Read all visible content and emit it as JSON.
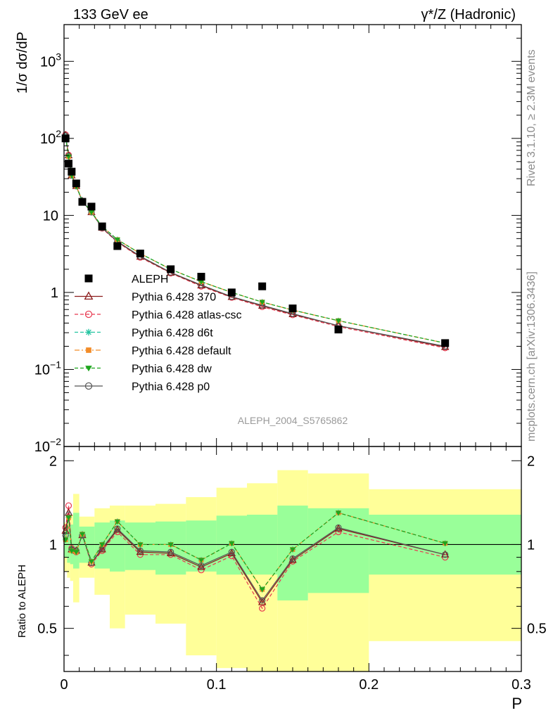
{
  "header": {
    "left": "133 GeV ee",
    "right": "γ*/Z (Hadronic)"
  },
  "side": {
    "rivet": "Rivet 3.1.10, ≥ 2.3M events",
    "mcplots": "mcplots.cern.ch [arXiv:1306.3436]"
  },
  "watermark": "ALEPH_2004_S5765862",
  "chart_data": [
    {
      "type": "scatter",
      "name": "main",
      "ylabel": "1/σ  dσ/dP",
      "xlim": [
        0,
        0.3
      ],
      "ylim": [
        0.01,
        3000
      ],
      "yscale": "log",
      "yticks": [
        {
          "v": 0.01,
          "label": "10",
          "sup": "−2"
        },
        {
          "v": 0.1,
          "label": "10",
          "sup": "−1"
        },
        {
          "v": 1,
          "label": "1",
          "sup": ""
        },
        {
          "v": 10,
          "label": "10",
          "sup": ""
        },
        {
          "v": 100,
          "label": "10",
          "sup": "2"
        },
        {
          "v": 1000,
          "label": "10",
          "sup": "3"
        }
      ],
      "x": [
        0.001,
        0.003,
        0.005,
        0.008,
        0.012,
        0.018,
        0.025,
        0.035,
        0.05,
        0.07,
        0.09,
        0.11,
        0.13,
        0.15,
        0.18,
        0.25
      ],
      "legend": [
        {
          "name": "ALEPH",
          "color": "#000000",
          "marker": "square",
          "dash": "none"
        },
        {
          "name": "Pythia 6.428 370",
          "color": "#8b1a1a",
          "marker": "triangle-open",
          "dash": "solid"
        },
        {
          "name": "Pythia 6.428 atlas-csc",
          "color": "#e8384f",
          "marker": "circle-open",
          "dash": "dashed"
        },
        {
          "name": "Pythia 6.428 d6t",
          "color": "#22c3a0",
          "marker": "star",
          "dash": "dashed"
        },
        {
          "name": "Pythia 6.428 default",
          "color": "#f28c28",
          "marker": "square-filled",
          "dash": "dashdot"
        },
        {
          "name": "Pythia 6.428 dw",
          "color": "#1ea51e",
          "marker": "triangle-down",
          "dash": "dashed"
        },
        {
          "name": "Pythia 6.428 p0",
          "color": "#555555",
          "marker": "circle-open",
          "dash": "solid"
        }
      ],
      "data": {
        "ALEPH": [
          100,
          47,
          37,
          26,
          15,
          13,
          7.2,
          4.0,
          3.2,
          2.0,
          1.6,
          1.0,
          1.2,
          0.62,
          0.33,
          0.22
        ],
        "Pythia 6.428 370": [
          110,
          60,
          33,
          24,
          15.3,
          11.0,
          6.9,
          4.55,
          2.9,
          1.8,
          1.23,
          0.87,
          0.67,
          0.52,
          0.37,
          0.195
        ],
        "Pythia 6.428 atlas-csc": [
          112,
          61,
          34,
          24,
          15.3,
          11.0,
          6.8,
          4.5,
          2.85,
          1.78,
          1.2,
          0.86,
          0.65,
          0.51,
          0.36,
          0.19
        ],
        "Pythia 6.428 d6t": [
          105,
          58,
          33,
          24,
          15.6,
          11.0,
          7.2,
          4.85,
          3.2,
          2.0,
          1.38,
          1.0,
          0.75,
          0.59,
          0.43,
          0.22
        ],
        "Pythia 6.428 default": [
          104,
          58,
          33,
          24,
          15.6,
          11.0,
          7.2,
          4.85,
          3.2,
          2.0,
          1.38,
          1.0,
          0.75,
          0.59,
          0.43,
          0.22
        ],
        "Pythia 6.428 dw": [
          104,
          58,
          33,
          24,
          15.6,
          11.0,
          7.2,
          4.85,
          3.2,
          2.0,
          1.38,
          1.0,
          0.75,
          0.59,
          0.43,
          0.22
        ],
        "Pythia 6.428 p0": [
          108,
          59,
          33,
          24,
          15.3,
          11.0,
          6.9,
          4.6,
          2.95,
          1.82,
          1.25,
          0.88,
          0.68,
          0.53,
          0.37,
          0.2
        ]
      }
    },
    {
      "type": "line",
      "name": "ratio",
      "ylabel": "Ratio to ALEPH",
      "xlabel": "P",
      "xlim": [
        0,
        0.3
      ],
      "ylim": [
        0.35,
        2.25
      ],
      "yscale": "log",
      "yticks": [
        0.5,
        1,
        2
      ],
      "xticks": [
        0,
        0.1,
        0.2,
        0.3
      ],
      "xtick_labels": [
        "0",
        "0.1",
        "0.2",
        "0.3"
      ],
      "bins": [
        {
          "lo": 0.0,
          "hi": 0.002,
          "inner": [
            0.9,
            1.1
          ],
          "outer": [
            0.8,
            1.2
          ]
        },
        {
          "lo": 0.002,
          "hi": 0.004,
          "inner": [
            0.86,
            1.16
          ],
          "outer": [
            0.76,
            1.26
          ]
        },
        {
          "lo": 0.004,
          "hi": 0.006,
          "inner": [
            0.85,
            1.18
          ],
          "outer": [
            0.74,
            1.28
          ]
        },
        {
          "lo": 0.006,
          "hi": 0.01,
          "inner": [
            0.82,
            1.3
          ],
          "outer": [
            0.62,
            1.52
          ]
        },
        {
          "lo": 0.01,
          "hi": 0.015,
          "inner": [
            0.86,
            1.16
          ],
          "outer": [
            0.76,
            1.26
          ]
        },
        {
          "lo": 0.015,
          "hi": 0.02,
          "inner": [
            0.86,
            1.16
          ],
          "outer": [
            0.76,
            1.26
          ]
        },
        {
          "lo": 0.02,
          "hi": 0.03,
          "inner": [
            0.82,
            1.2
          ],
          "outer": [
            0.66,
            1.35
          ]
        },
        {
          "lo": 0.03,
          "hi": 0.04,
          "inner": [
            0.8,
            1.22
          ],
          "outer": [
            0.5,
            1.38
          ]
        },
        {
          "lo": 0.04,
          "hi": 0.06,
          "inner": [
            0.81,
            1.2
          ],
          "outer": [
            0.56,
            1.38
          ]
        },
        {
          "lo": 0.06,
          "hi": 0.08,
          "inner": [
            0.78,
            1.21
          ],
          "outer": [
            0.52,
            1.4
          ]
        },
        {
          "lo": 0.08,
          "hi": 0.1,
          "inner": [
            0.8,
            1.22
          ],
          "outer": [
            0.4,
            1.48
          ]
        },
        {
          "lo": 0.1,
          "hi": 0.12,
          "inner": [
            0.78,
            1.27
          ],
          "outer": [
            0.36,
            1.6
          ]
        },
        {
          "lo": 0.12,
          "hi": 0.14,
          "inner": [
            0.78,
            1.28
          ],
          "outer": [
            0.35,
            1.66
          ]
        },
        {
          "lo": 0.14,
          "hi": 0.16,
          "inner": [
            0.63,
            1.38
          ],
          "outer": [
            0.35,
            1.85
          ]
        },
        {
          "lo": 0.16,
          "hi": 0.2,
          "inner": [
            0.67,
            1.35
          ],
          "outer": [
            0.35,
            1.8
          ]
        },
        {
          "lo": 0.2,
          "hi": 0.3,
          "inner": [
            0.78,
            1.28
          ],
          "outer": [
            0.45,
            1.58
          ]
        }
      ],
      "x": [
        0.001,
        0.003,
        0.005,
        0.008,
        0.012,
        0.018,
        0.025,
        0.035,
        0.05,
        0.07,
        0.09,
        0.11,
        0.13,
        0.15,
        0.18,
        0.25
      ],
      "series": [
        {
          "name": "Pythia 6.428 370",
          "values": [
            1.12,
            1.3,
            0.96,
            0.95,
            1.08,
            0.86,
            0.96,
            1.13,
            0.94,
            0.93,
            0.83,
            0.93,
            0.62,
            0.88,
            1.14,
            0.92
          ]
        },
        {
          "name": "Pythia 6.428 atlas-csc",
          "values": [
            1.15,
            1.38,
            0.97,
            0.94,
            1.08,
            0.85,
            0.95,
            1.11,
            0.92,
            0.92,
            0.81,
            0.91,
            0.59,
            0.87,
            1.11,
            0.9
          ]
        },
        {
          "name": "Pythia 6.428 d6t",
          "values": [
            1.04,
            1.25,
            0.95,
            0.94,
            1.09,
            0.87,
            1.0,
            1.21,
            1.0,
            1.0,
            0.88,
            1.01,
            0.69,
            0.96,
            1.3,
            1.01
          ]
        },
        {
          "name": "Pythia 6.428 default",
          "values": [
            1.04,
            1.25,
            0.95,
            0.94,
            1.09,
            0.87,
            1.0,
            1.21,
            1.0,
            1.0,
            0.88,
            1.01,
            0.69,
            0.96,
            1.3,
            1.01
          ]
        },
        {
          "name": "Pythia 6.428 dw",
          "values": [
            1.04,
            1.25,
            0.95,
            0.94,
            1.09,
            0.87,
            1.0,
            1.21,
            1.0,
            1.0,
            0.88,
            1.01,
            0.69,
            0.96,
            1.3,
            1.01
          ]
        },
        {
          "name": "Pythia 6.428 p0",
          "values": [
            1.08,
            1.28,
            0.96,
            0.95,
            1.08,
            0.86,
            0.97,
            1.14,
            0.95,
            0.94,
            0.84,
            0.94,
            0.63,
            0.89,
            1.15,
            0.92
          ]
        }
      ],
      "colors": {
        "inner": "#99ff99",
        "outer": "#ffff99",
        "unity": "#000000"
      }
    }
  ]
}
